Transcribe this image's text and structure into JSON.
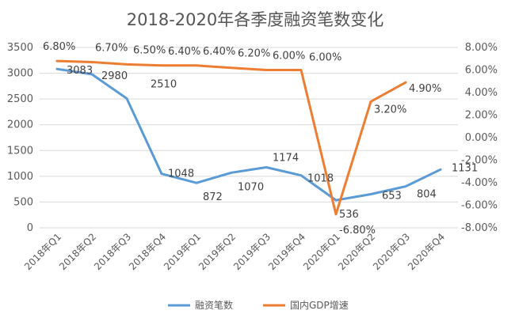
{
  "chart_data": {
    "type": "line",
    "title": "2018-2020年各季度融资笔数变化",
    "categories": [
      "2018年Q1",
      "2018年Q2",
      "2018年Q3",
      "2018年Q4",
      "2019年Q1",
      "2019年Q2",
      "2019年Q3",
      "2019年Q4",
      "2020年Q1",
      "2020年Q2",
      "2020年Q3",
      "2020年Q4"
    ],
    "series": [
      {
        "name": "融资笔数",
        "axis": "left",
        "color": "#5B9BD5",
        "values": [
          3083,
          2980,
          2510,
          1048,
          872,
          1070,
          1174,
          1018,
          536,
          653,
          804,
          1131
        ],
        "labels": [
          "3083",
          "2980",
          "2510",
          "1048",
          "872",
          "1070",
          "1174",
          "1018",
          "536",
          "653",
          "804",
          "1131"
        ]
      },
      {
        "name": "国内GDP增速",
        "axis": "right",
        "color": "#ED7D31",
        "values": [
          6.8,
          6.7,
          6.5,
          6.4,
          6.4,
          6.2,
          6.0,
          6.0,
          -6.8,
          3.2,
          4.9,
          null
        ],
        "labels": [
          "6.80%",
          "6.70%",
          "6.50%",
          "6.40%",
          "6.40%",
          "6.20%",
          "6.00%",
          "6.00%",
          "-6.80%",
          "3.20%",
          "4.90%",
          ""
        ]
      }
    ],
    "y_left": {
      "min": 0,
      "max": 3500,
      "step": 500,
      "ticks": [
        "0",
        "500",
        "1000",
        "1500",
        "2000",
        "2500",
        "3000",
        "3500"
      ]
    },
    "y_right": {
      "min": -8,
      "max": 8,
      "step": 2,
      "ticks": [
        "-8.00%",
        "-6.00%",
        "-4.00%",
        "-2.00%",
        "0.00%",
        "2.00%",
        "4.00%",
        "6.00%",
        "8.00%"
      ]
    },
    "grid": true,
    "legend_position": "bottom"
  }
}
